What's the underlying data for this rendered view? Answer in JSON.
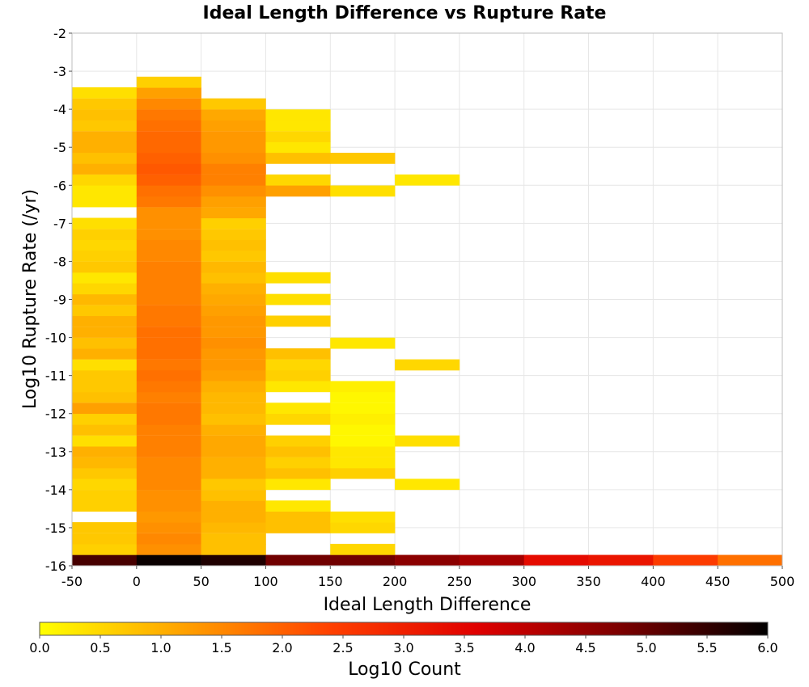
{
  "chart_data": {
    "type": "heatmap",
    "title": "Ideal Length Difference vs Rupture Rate",
    "xlabel": "Ideal Length Difference",
    "ylabel": "Log10 Rupture Rate (/yr)",
    "xlim": [
      -50,
      500
    ],
    "ylim": [
      -16,
      -2
    ],
    "x_ticks": [
      "-50",
      "0",
      "50",
      "100",
      "150",
      "200",
      "250",
      "300",
      "350",
      "400",
      "450",
      "500"
    ],
    "y_ticks": [
      "-2",
      "-3",
      "-4",
      "-5",
      "-6",
      "-7",
      "-8",
      "-9",
      "-10",
      "-11",
      "-12",
      "-13",
      "-14",
      "-15",
      "-16"
    ],
    "grid": true,
    "bin_width_x": 50,
    "bin_height_y": 0.2857,
    "colorbar": {
      "label": "Log10 Count",
      "min": 0.0,
      "max": 6.0,
      "ticks": [
        "0.0",
        "0.5",
        "1.0",
        "1.5",
        "2.0",
        "2.5",
        "3.0",
        "3.5",
        "4.0",
        "4.5",
        "5.0",
        "5.5",
        "6.0"
      ],
      "colors": [
        "#ffff00",
        "#ffa000",
        "#ff4000",
        "#e00000",
        "#7a0000",
        "#000000"
      ]
    },
    "columns": [
      {
        "x": -50,
        "cells": [
          [
            -16.0,
            5.3
          ],
          [
            -15.71,
            0.6
          ],
          [
            -15.43,
            0.7
          ],
          [
            -15.14,
            0.7
          ],
          [
            -14.57,
            0.6
          ],
          [
            -14.29,
            0.6
          ],
          [
            -14.0,
            0.5
          ],
          [
            -13.71,
            0.7
          ],
          [
            -13.43,
            0.9
          ],
          [
            -13.14,
            1.0
          ],
          [
            -12.86,
            0.4
          ],
          [
            -12.57,
            0.8
          ],
          [
            -12.29,
            0.6
          ],
          [
            -12.0,
            1.2
          ],
          [
            -11.71,
            0.8
          ],
          [
            -11.43,
            0.7
          ],
          [
            -11.14,
            0.7
          ],
          [
            -10.86,
            0.4
          ],
          [
            -10.57,
            1.0
          ],
          [
            -10.29,
            0.8
          ],
          [
            -10.0,
            1.0
          ],
          [
            -9.71,
            1.0
          ],
          [
            -9.43,
            0.7
          ],
          [
            -9.14,
            0.9
          ],
          [
            -8.86,
            0.5
          ],
          [
            -8.57,
            0.3
          ],
          [
            -8.29,
            0.7
          ],
          [
            -8.0,
            0.6
          ],
          [
            -7.71,
            0.5
          ],
          [
            -7.43,
            0.6
          ],
          [
            -7.14,
            0.4
          ],
          [
            -6.57,
            0.3
          ],
          [
            -6.29,
            0.3
          ],
          [
            -6.0,
            0.5
          ],
          [
            -5.71,
            1.0
          ],
          [
            -5.43,
            0.8
          ],
          [
            -5.14,
            1.0
          ],
          [
            -4.86,
            1.0
          ],
          [
            -4.57,
            0.7
          ],
          [
            -4.29,
            0.8
          ],
          [
            -4.0,
            0.7
          ],
          [
            -3.71,
            0.4
          ]
        ]
      },
      {
        "x": 0,
        "cells": [
          [
            -16.0,
            5.9
          ],
          [
            -15.71,
            1.4
          ],
          [
            -15.43,
            1.5
          ],
          [
            -15.14,
            1.4
          ],
          [
            -14.86,
            1.3
          ],
          [
            -14.57,
            1.4
          ],
          [
            -14.29,
            1.4
          ],
          [
            -14.0,
            1.5
          ],
          [
            -13.71,
            1.5
          ],
          [
            -13.43,
            1.5
          ],
          [
            -13.14,
            1.6
          ],
          [
            -12.86,
            1.6
          ],
          [
            -12.57,
            1.6
          ],
          [
            -12.29,
            1.7
          ],
          [
            -12.0,
            1.7
          ],
          [
            -11.71,
            1.6
          ],
          [
            -11.43,
            1.7
          ],
          [
            -11.14,
            1.8
          ],
          [
            -10.86,
            1.7
          ],
          [
            -10.57,
            1.8
          ],
          [
            -10.29,
            1.8
          ],
          [
            -10.0,
            1.8
          ],
          [
            -9.71,
            1.7
          ],
          [
            -9.43,
            1.7
          ],
          [
            -9.14,
            1.6
          ],
          [
            -8.86,
            1.6
          ],
          [
            -8.57,
            1.6
          ],
          [
            -8.29,
            1.6
          ],
          [
            -8.0,
            1.5
          ],
          [
            -7.71,
            1.5
          ],
          [
            -7.43,
            1.4
          ],
          [
            -7.14,
            1.4
          ],
          [
            -6.86,
            1.4
          ],
          [
            -6.57,
            1.7
          ],
          [
            -6.29,
            1.8
          ],
          [
            -6.0,
            2.0
          ],
          [
            -5.71,
            2.1
          ],
          [
            -5.43,
            2.0
          ],
          [
            -5.14,
            1.9
          ],
          [
            -4.86,
            1.9
          ],
          [
            -4.57,
            1.8
          ],
          [
            -4.29,
            1.7
          ],
          [
            -4.0,
            1.5
          ],
          [
            -3.71,
            1.2
          ],
          [
            -3.43,
            0.6
          ]
        ]
      },
      {
        "x": 50,
        "cells": [
          [
            -16.0,
            5.7
          ],
          [
            -15.71,
            0.8
          ],
          [
            -15.43,
            0.8
          ],
          [
            -15.14,
            0.9
          ],
          [
            -14.86,
            1.0
          ],
          [
            -14.57,
            1.0
          ],
          [
            -14.29,
            0.8
          ],
          [
            -14.0,
            0.7
          ],
          [
            -13.71,
            1.0
          ],
          [
            -13.43,
            1.0
          ],
          [
            -13.14,
            1.1
          ],
          [
            -12.86,
            1.1
          ],
          [
            -12.57,
            1.0
          ],
          [
            -12.29,
            0.8
          ],
          [
            -12.0,
            0.9
          ],
          [
            -11.71,
            0.9
          ],
          [
            -11.43,
            1.0
          ],
          [
            -11.14,
            1.2
          ],
          [
            -10.86,
            1.3
          ],
          [
            -10.57,
            1.3
          ],
          [
            -10.29,
            1.4
          ],
          [
            -10.0,
            1.3
          ],
          [
            -9.71,
            1.3
          ],
          [
            -9.43,
            1.2
          ],
          [
            -9.14,
            1.1
          ],
          [
            -8.86,
            1.0
          ],
          [
            -8.57,
            0.8
          ],
          [
            -8.29,
            0.9
          ],
          [
            -8.0,
            0.7
          ],
          [
            -7.71,
            0.8
          ],
          [
            -7.43,
            0.7
          ],
          [
            -7.14,
            0.6
          ],
          [
            -6.86,
            1.1
          ],
          [
            -6.57,
            1.2
          ],
          [
            -6.29,
            1.4
          ],
          [
            -6.0,
            1.6
          ],
          [
            -5.71,
            1.6
          ],
          [
            -5.43,
            1.4
          ],
          [
            -5.14,
            1.3
          ],
          [
            -4.86,
            1.3
          ],
          [
            -4.57,
            1.2
          ],
          [
            -4.29,
            1.1
          ],
          [
            -4.0,
            0.7
          ]
        ]
      },
      {
        "x": 100,
        "cells": [
          [
            -16.0,
            4.9
          ],
          [
            -15.14,
            0.8
          ],
          [
            -14.86,
            0.8
          ],
          [
            -14.57,
            0.3
          ],
          [
            -14.0,
            0.3
          ],
          [
            -13.71,
            0.8
          ],
          [
            -13.43,
            0.6
          ],
          [
            -13.14,
            0.8
          ],
          [
            -12.86,
            0.6
          ],
          [
            -12.29,
            0.5
          ],
          [
            -12.0,
            0.3
          ],
          [
            -11.43,
            0.3
          ],
          [
            -11.14,
            0.6
          ],
          [
            -10.86,
            0.5
          ],
          [
            -10.57,
            0.8
          ],
          [
            -9.71,
            0.6
          ],
          [
            -9.14,
            0.4
          ],
          [
            -8.57,
            0.4
          ],
          [
            -6.29,
            1.2
          ],
          [
            -6.0,
            0.5
          ],
          [
            -5.43,
            0.8
          ],
          [
            -5.14,
            0.3
          ],
          [
            -4.86,
            0.5
          ],
          [
            -4.57,
            0.3
          ],
          [
            -4.29,
            0.3
          ]
        ]
      },
      {
        "x": 150,
        "cells": [
          [
            -16.0,
            4.9
          ],
          [
            -15.71,
            0.5
          ],
          [
            -15.14,
            0.5
          ],
          [
            -14.86,
            0.4
          ],
          [
            -13.71,
            0.6
          ],
          [
            -13.43,
            0.3
          ],
          [
            -13.14,
            0.3
          ],
          [
            -12.86,
            0.1
          ],
          [
            -12.57,
            0.1
          ],
          [
            -12.29,
            0.2
          ],
          [
            -12.0,
            0.1
          ],
          [
            -11.71,
            0.1
          ],
          [
            -11.43,
            0.2
          ],
          [
            -10.29,
            0.3
          ],
          [
            -6.29,
            0.4
          ],
          [
            -5.43,
            0.7
          ]
        ]
      },
      {
        "x": 200,
        "cells": [
          [
            -16.0,
            4.6
          ],
          [
            -14.0,
            0.3
          ],
          [
            -12.86,
            0.4
          ],
          [
            -10.86,
            0.5
          ],
          [
            -6.0,
            0.3
          ]
        ]
      },
      {
        "x": 250,
        "cells": [
          [
            -16.0,
            4.3
          ]
        ]
      },
      {
        "x": 300,
        "cells": [
          [
            -16.0,
            3.4
          ]
        ]
      },
      {
        "x": 350,
        "cells": [
          [
            -16.0,
            3.2
          ]
        ]
      },
      {
        "x": 400,
        "cells": [
          [
            -16.0,
            2.5
          ]
        ]
      },
      {
        "x": 450,
        "cells": [
          [
            -16.0,
            1.8
          ]
        ]
      }
    ]
  }
}
